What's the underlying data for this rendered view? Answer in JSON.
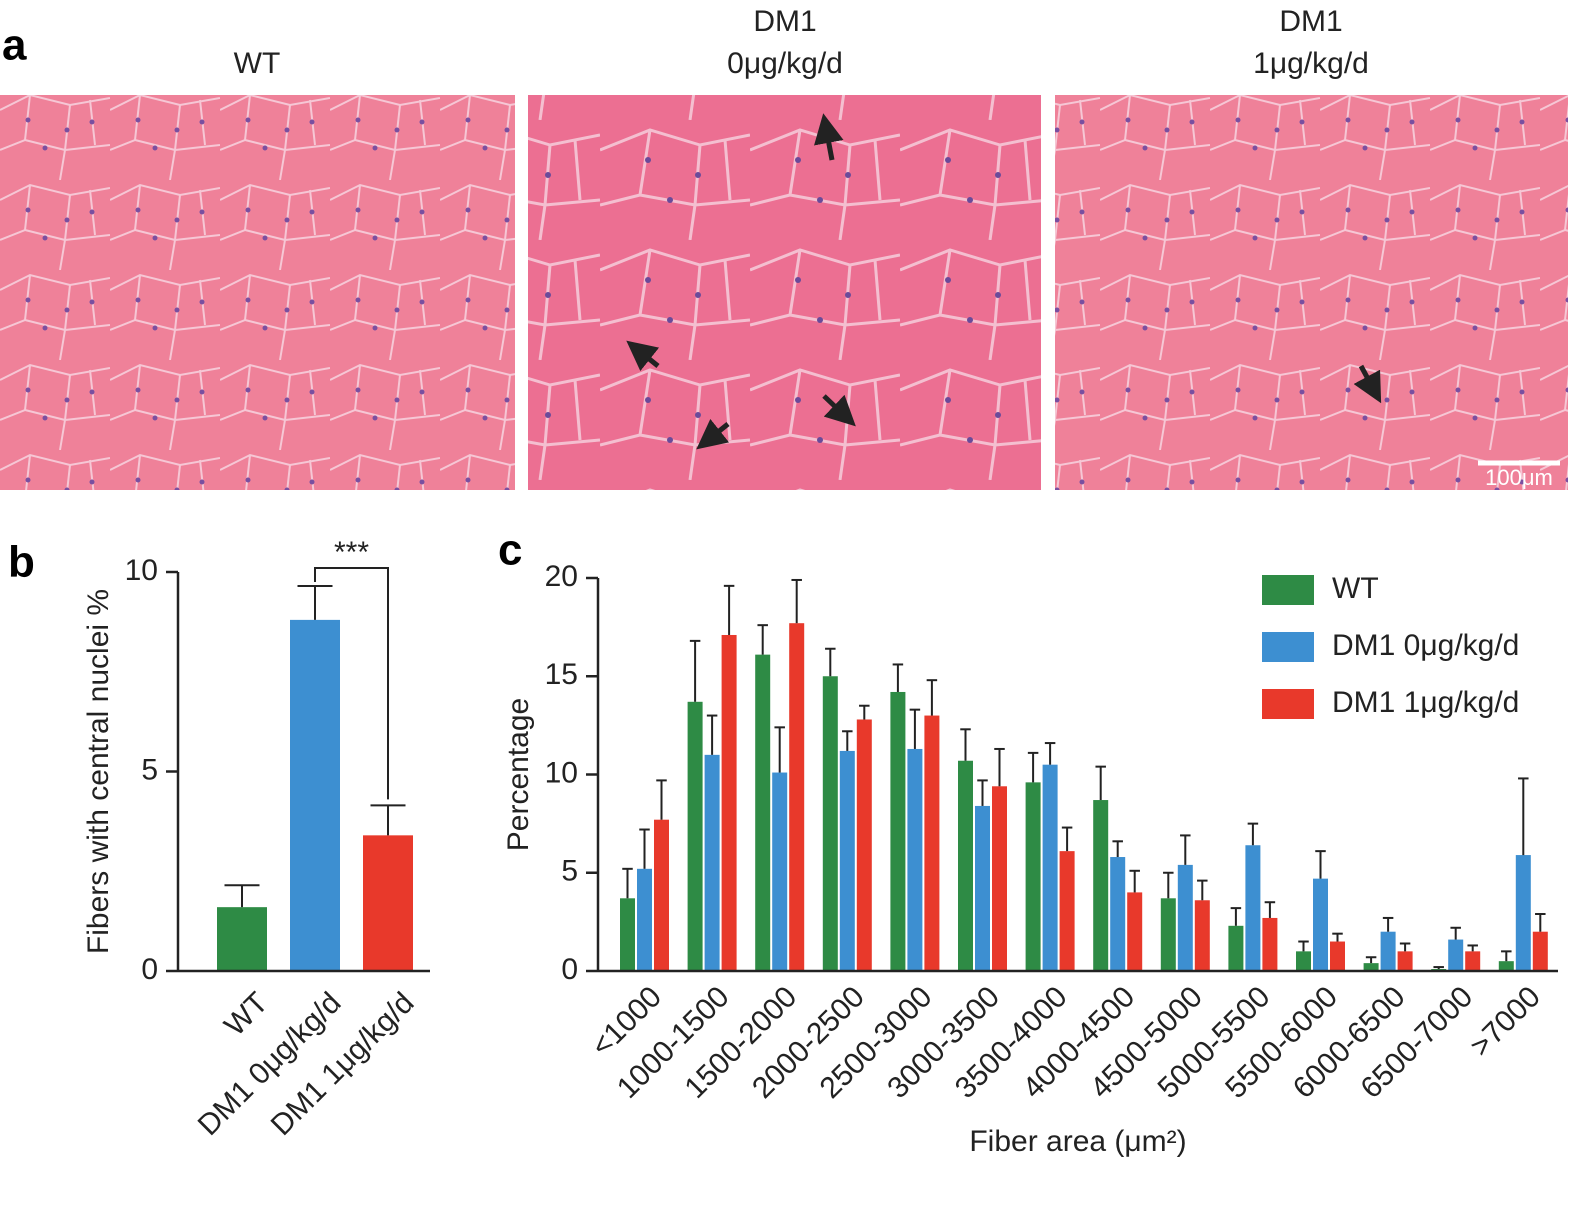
{
  "panel_labels": [
    "a",
    "b",
    "c"
  ],
  "images": [
    {
      "title": [
        "WT"
      ]
    },
    {
      "title": [
        "DM1",
        "0μg/kg/d"
      ]
    },
    {
      "title": [
        "DM1",
        "1μg/kg/d"
      ],
      "scale_bar": "100μm"
    }
  ],
  "chart_data": [
    {
      "type": "bar",
      "ylabel": "Fibers with central nuclei %",
      "categories": [
        "WT",
        "DM1 0μg/kg/d",
        "DM1 1μg/kg/d"
      ],
      "values": [
        1.6,
        8.8,
        3.4
      ],
      "errors": [
        0.55,
        0.85,
        0.75
      ],
      "colors": [
        "#2e8b45",
        "#3d8fd1",
        "#e8392b"
      ],
      "ylim": [
        0,
        10
      ],
      "yticks": [
        0,
        5,
        10
      ],
      "annotation": "***"
    },
    {
      "type": "bar",
      "ylabel": "Percentage",
      "xlabel": "Fiber area (μm²)",
      "categories": [
        "<1000",
        "1000-1500",
        "1500-2000",
        "2000-2500",
        "2500-3000",
        "3000-3500",
        "3500-4000",
        "4000-4500",
        "4500-5000",
        "5000-5500",
        "5500-6000",
        "6000-6500",
        "6500-7000",
        ">7000"
      ],
      "series": [
        {
          "name": "WT",
          "color": "#2e8b45",
          "values": [
            3.7,
            13.7,
            16.1,
            15.0,
            14.2,
            10.7,
            9.6,
            8.7,
            3.7,
            2.3,
            1.0,
            0.4,
            0.1,
            0.5
          ],
          "errors": [
            1.5,
            3.1,
            1.5,
            1.4,
            1.4,
            1.6,
            1.5,
            1.7,
            1.3,
            0.9,
            0.5,
            0.3,
            0.1,
            0.5
          ]
        },
        {
          "name": "DM1 0μg/kg/d",
          "color": "#3d8fd1",
          "values": [
            5.2,
            11.0,
            10.1,
            11.2,
            11.3,
            8.4,
            10.5,
            5.8,
            5.4,
            6.4,
            4.7,
            2.0,
            1.6,
            5.9
          ],
          "errors": [
            2.0,
            2.0,
            2.3,
            1.0,
            2.0,
            1.3,
            1.1,
            0.8,
            1.5,
            1.1,
            1.4,
            0.7,
            0.6,
            3.9
          ]
        },
        {
          "name": "DM1 1μg/kg/d",
          "color": "#e8392b",
          "values": [
            7.7,
            17.1,
            17.7,
            12.8,
            13.0,
            9.4,
            6.1,
            4.0,
            3.6,
            2.7,
            1.5,
            1.0,
            1.0,
            2.0
          ],
          "errors": [
            2.0,
            2.5,
            2.2,
            0.7,
            1.8,
            1.9,
            1.2,
            1.1,
            1.0,
            0.8,
            0.4,
            0.4,
            0.3,
            0.9
          ]
        }
      ],
      "ylim": [
        0,
        20
      ],
      "yticks": [
        0,
        5,
        10,
        15,
        20
      ],
      "legend": "upper right"
    }
  ]
}
